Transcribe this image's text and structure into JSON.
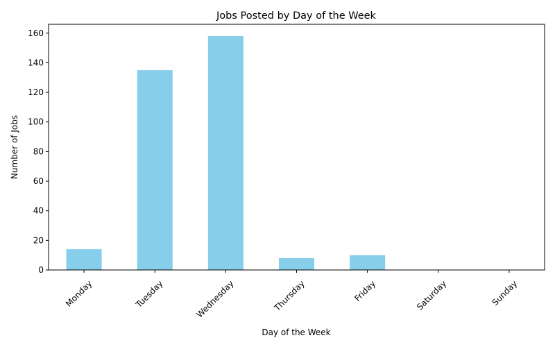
{
  "chart_data": {
    "type": "bar",
    "title": "Jobs Posted by Day of the Week",
    "xlabel": "Day of the Week",
    "ylabel": "Number of Jobs",
    "categories": [
      "Monday",
      "Tuesday",
      "Wednesday",
      "Thursday",
      "Friday",
      "Saturday",
      "Sunday"
    ],
    "values": [
      14,
      135,
      158,
      8,
      10,
      0,
      0
    ],
    "ylim": [
      0,
      166
    ],
    "yticks": [
      0,
      20,
      40,
      60,
      80,
      100,
      120,
      140,
      160
    ],
    "bar_color": "#87ceeb",
    "grid": false,
    "legend": "none"
  }
}
